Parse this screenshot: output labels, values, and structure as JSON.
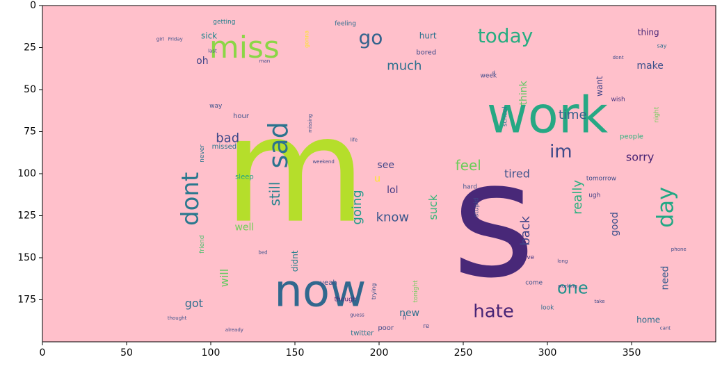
{
  "chart_data": {
    "type": "wordcloud",
    "background_color": "#ffc0cb",
    "xlim": [
      0,
      400
    ],
    "ylim": [
      200,
      0
    ],
    "x_ticks": [
      0,
      50,
      100,
      150,
      200,
      250,
      300,
      350
    ],
    "y_ticks": [
      0,
      25,
      50,
      75,
      100,
      125,
      150,
      175
    ],
    "words": [
      {
        "text": "m",
        "x": 150,
        "y": 98,
        "size": 210,
        "color": "#b5de2b",
        "rot": 0
      },
      {
        "text": "s",
        "x": 268,
        "y": 128,
        "size": 230,
        "color": "#482878",
        "rot": 0
      },
      {
        "text": "work",
        "x": 300,
        "y": 65,
        "size": 72,
        "color": "#26a884",
        "rot": 0
      },
      {
        "text": "now",
        "x": 165,
        "y": 170,
        "size": 64,
        "color": "#31688e",
        "rot": 0
      },
      {
        "text": "miss",
        "x": 120,
        "y": 25,
        "size": 44,
        "color": "#8bd646",
        "rot": 0
      },
      {
        "text": "sad",
        "x": 140,
        "y": 83,
        "size": 38,
        "color": "#2c738e",
        "rot": -90
      },
      {
        "text": "dont",
        "x": 88,
        "y": 115,
        "size": 34,
        "color": "#2a788e",
        "rot": -90
      },
      {
        "text": "today",
        "x": 275,
        "y": 18,
        "size": 28,
        "color": "#27ad81",
        "rot": 0
      },
      {
        "text": "go",
        "x": 195,
        "y": 19,
        "size": 28,
        "color": "#33638d",
        "rot": 0
      },
      {
        "text": "day",
        "x": 370,
        "y": 120,
        "size": 32,
        "color": "#22a884",
        "rot": -90
      },
      {
        "text": "hate",
        "x": 268,
        "y": 182,
        "size": 26,
        "color": "#482576",
        "rot": 0
      },
      {
        "text": "one",
        "x": 315,
        "y": 168,
        "size": 24,
        "color": "#21918c",
        "rot": 0
      },
      {
        "text": "im",
        "x": 308,
        "y": 87,
        "size": 26,
        "color": "#3e4a89",
        "rot": 0
      },
      {
        "text": "sorry",
        "x": 355,
        "y": 90,
        "size": 16,
        "color": "#482374",
        "rot": 0
      },
      {
        "text": "time",
        "x": 315,
        "y": 65,
        "size": 18,
        "color": "#35608d",
        "rot": 0
      },
      {
        "text": "much",
        "x": 215,
        "y": 36,
        "size": 18,
        "color": "#2d708e",
        "rot": 0
      },
      {
        "text": "make",
        "x": 361,
        "y": 36,
        "size": 14,
        "color": "#3b518b",
        "rot": 0
      },
      {
        "text": "thing",
        "x": 360,
        "y": 16,
        "size": 12,
        "color": "#482878",
        "rot": 0
      },
      {
        "text": "want",
        "x": 331,
        "y": 48,
        "size": 12,
        "color": "#414487",
        "rot": -90
      },
      {
        "text": "think",
        "x": 286,
        "y": 52,
        "size": 14,
        "color": "#5ec962",
        "rot": -90
      },
      {
        "text": "feel",
        "x": 253,
        "y": 95,
        "size": 20,
        "color": "#6ccd5a",
        "rot": 0
      },
      {
        "text": "tired",
        "x": 282,
        "y": 100,
        "size": 16,
        "color": "#3b528b",
        "rot": 0
      },
      {
        "text": "bad",
        "x": 110,
        "y": 79,
        "size": 18,
        "color": "#3e4989",
        "rot": 0
      },
      {
        "text": "still",
        "x": 138,
        "y": 112,
        "size": 20,
        "color": "#26828e",
        "rot": -90
      },
      {
        "text": "going",
        "x": 187,
        "y": 120,
        "size": 18,
        "color": "#1f9a8a",
        "rot": -90
      },
      {
        "text": "know",
        "x": 208,
        "y": 126,
        "size": 18,
        "color": "#39568c",
        "rot": 0
      },
      {
        "text": "suck",
        "x": 232,
        "y": 120,
        "size": 16,
        "color": "#35b779",
        "rot": -90
      },
      {
        "text": "back",
        "x": 287,
        "y": 134,
        "size": 18,
        "color": "#404588",
        "rot": -90
      },
      {
        "text": "really",
        "x": 318,
        "y": 114,
        "size": 18,
        "color": "#2ab07f",
        "rot": -90
      },
      {
        "text": "good",
        "x": 340,
        "y": 130,
        "size": 14,
        "color": "#3c508b",
        "rot": -90
      },
      {
        "text": "need",
        "x": 370,
        "y": 162,
        "size": 14,
        "color": "#375b8d",
        "rot": -90
      },
      {
        "text": "got",
        "x": 90,
        "y": 177,
        "size": 16,
        "color": "#2e6e8e",
        "rot": 0
      },
      {
        "text": "will",
        "x": 108,
        "y": 162,
        "size": 16,
        "color": "#63cb5f",
        "rot": -90
      },
      {
        "text": "well",
        "x": 120,
        "y": 132,
        "size": 14,
        "color": "#70cf57",
        "rot": 0
      },
      {
        "text": "new",
        "x": 218,
        "y": 183,
        "size": 14,
        "color": "#2e6f8e",
        "rot": 0
      },
      {
        "text": "lol",
        "x": 208,
        "y": 110,
        "size": 14,
        "color": "#443a83",
        "rot": 0
      },
      {
        "text": "see",
        "x": 204,
        "y": 95,
        "size": 14,
        "color": "#404688",
        "rot": 0
      },
      {
        "text": "oh",
        "x": 95,
        "y": 33,
        "size": 14,
        "color": "#404588",
        "rot": 0
      },
      {
        "text": "sick",
        "x": 99,
        "y": 18,
        "size": 12,
        "color": "#24868e",
        "rot": 0
      },
      {
        "text": "hurt",
        "x": 229,
        "y": 18,
        "size": 12,
        "color": "#2c728e",
        "rot": 0
      },
      {
        "text": "bored",
        "x": 228,
        "y": 28,
        "size": 10,
        "color": "#3e4989",
        "rot": 0
      },
      {
        "text": "u",
        "x": 199,
        "y": 103,
        "size": 14,
        "color": "#fde725",
        "rot": 0
      },
      {
        "text": "home",
        "x": 360,
        "y": 187,
        "size": 12,
        "color": "#2e6f8e",
        "rot": 0
      },
      {
        "text": "people",
        "x": 350,
        "y": 78,
        "size": 10,
        "color": "#2db27d",
        "rot": 0
      },
      {
        "text": "missed",
        "x": 108,
        "y": 84,
        "size": 10,
        "color": "#2a788e",
        "rot": 0
      },
      {
        "text": "sleep",
        "x": 120,
        "y": 102,
        "size": 10,
        "color": "#20a486",
        "rot": 0
      },
      {
        "text": "hour",
        "x": 118,
        "y": 66,
        "size": 10,
        "color": "#3b518b",
        "rot": 0
      },
      {
        "text": "way",
        "x": 103,
        "y": 60,
        "size": 9,
        "color": "#3b528b",
        "rot": 0
      },
      {
        "text": "getting",
        "x": 108,
        "y": 10,
        "size": 9,
        "color": "#27808e",
        "rot": 0
      },
      {
        "text": "feeling",
        "x": 180,
        "y": 11,
        "size": 9,
        "color": "#2e6d8e",
        "rot": 0
      },
      {
        "text": "week",
        "x": 265,
        "y": 42,
        "size": 9,
        "color": "#3e4a89",
        "rot": 0
      },
      {
        "text": "wish",
        "x": 342,
        "y": 56,
        "size": 9,
        "color": "#46337f",
        "rot": 0
      },
      {
        "text": "night",
        "x": 365,
        "y": 65,
        "size": 9,
        "color": "#6ece58",
        "rot": -90
      },
      {
        "text": "school",
        "x": 275,
        "y": 66,
        "size": 9,
        "color": "#2a788e",
        "rot": -90
      },
      {
        "text": "tomorrow",
        "x": 332,
        "y": 103,
        "size": 9,
        "color": "#3e4c8a",
        "rot": 0
      },
      {
        "text": "ugh",
        "x": 328,
        "y": 113,
        "size": 9,
        "color": "#423f85",
        "rot": 0
      },
      {
        "text": "hard",
        "x": 254,
        "y": 108,
        "size": 9,
        "color": "#3b528b",
        "rot": 0
      },
      {
        "text": "stupid",
        "x": 258,
        "y": 120,
        "size": 9,
        "color": "#3e4a89",
        "rot": -90
      },
      {
        "text": "friend",
        "x": 95,
        "y": 142,
        "size": 9,
        "color": "#4ac16d",
        "rot": -90
      },
      {
        "text": "never",
        "x": 95,
        "y": 88,
        "size": 9,
        "color": "#2a778e",
        "rot": -90
      },
      {
        "text": "didnt",
        "x": 150,
        "y": 152,
        "size": 12,
        "color": "#27808e",
        "rot": -90
      },
      {
        "text": "yeah",
        "x": 170,
        "y": 165,
        "size": 10,
        "color": "#3b528b",
        "rot": 0
      },
      {
        "text": "though",
        "x": 180,
        "y": 175,
        "size": 9,
        "color": "#482878",
        "rot": 0
      },
      {
        "text": "tonight",
        "x": 222,
        "y": 170,
        "size": 9,
        "color": "#6ece58",
        "rot": -90
      },
      {
        "text": "ve",
        "x": 290,
        "y": 150,
        "size": 9,
        "color": "#443983",
        "rot": 0
      },
      {
        "text": "come",
        "x": 292,
        "y": 165,
        "size": 9,
        "color": "#3b528b",
        "rot": 0
      },
      {
        "text": "look",
        "x": 300,
        "y": 180,
        "size": 9,
        "color": "#2e6e8e",
        "rot": 0
      },
      {
        "text": "twitter",
        "x": 190,
        "y": 195,
        "size": 10,
        "color": "#2a788e",
        "rot": 0
      },
      {
        "text": "poor",
        "x": 204,
        "y": 192,
        "size": 10,
        "color": "#3e4a89",
        "rot": 0
      },
      {
        "text": "ll",
        "x": 215,
        "y": 186,
        "size": 9,
        "color": "#3b528b",
        "rot": 0
      },
      {
        "text": "re",
        "x": 228,
        "y": 191,
        "size": 9,
        "color": "#3e4a89",
        "rot": 0
      },
      {
        "text": "trying",
        "x": 197,
        "y": 170,
        "size": 8,
        "color": "#3b528b",
        "rot": -90
      },
      {
        "text": "say",
        "x": 368,
        "y": 24,
        "size": 8,
        "color": "#2d708e",
        "rot": 0
      },
      {
        "text": "gonna",
        "x": 157,
        "y": 20,
        "size": 8,
        "color": "#fde725",
        "rot": -90
      },
      {
        "text": "thought",
        "x": 80,
        "y": 186,
        "size": 7,
        "color": "#3b528b",
        "rot": 0
      },
      {
        "text": "already",
        "x": 114,
        "y": 193,
        "size": 7,
        "color": "#3e4a89",
        "rot": 0
      },
      {
        "text": "working",
        "x": 312,
        "y": 167,
        "size": 7,
        "color": "#3b528b",
        "rot": 0
      },
      {
        "text": "take",
        "x": 331,
        "y": 176,
        "size": 7,
        "color": "#3e4a89",
        "rot": 0
      },
      {
        "text": "cant",
        "x": 370,
        "y": 192,
        "size": 7,
        "color": "#3b528b",
        "rot": 0
      },
      {
        "text": "long",
        "x": 309,
        "y": 152,
        "size": 7,
        "color": "#3e4a89",
        "rot": 0
      },
      {
        "text": "bed",
        "x": 131,
        "y": 147,
        "size": 7,
        "color": "#3b528b",
        "rot": 0
      },
      {
        "text": "weekend",
        "x": 167,
        "y": 93,
        "size": 7,
        "color": "#3e4a89",
        "rot": 0
      },
      {
        "text": "life",
        "x": 185,
        "y": 80,
        "size": 7,
        "color": "#3b528b",
        "rot": 0
      },
      {
        "text": "phone",
        "x": 378,
        "y": 145,
        "size": 7,
        "color": "#3e4a89",
        "rot": 0
      },
      {
        "text": "dont",
        "x": 342,
        "y": 31,
        "size": 7,
        "color": "#3e4a89",
        "rot": 0
      },
      {
        "text": "last",
        "x": 101,
        "y": 27,
        "size": 7,
        "color": "#3b528b",
        "rot": 0
      },
      {
        "text": "man",
        "x": 132,
        "y": 33,
        "size": 7,
        "color": "#3e4a89",
        "rot": 0
      },
      {
        "text": "d",
        "x": 268,
        "y": 40,
        "size": 7,
        "color": "#3b528b",
        "rot": 0
      },
      {
        "text": "girl",
        "x": 70,
        "y": 20,
        "size": 7,
        "color": "#3e4a89",
        "rot": 0
      },
      {
        "text": "Friday",
        "x": 79,
        "y": 20,
        "size": 7,
        "color": "#3b528b",
        "rot": 0
      },
      {
        "text": "guess",
        "x": 187,
        "y": 184,
        "size": 7,
        "color": "#3e4a89",
        "rot": 0
      },
      {
        "text": "missing",
        "x": 159,
        "y": 70,
        "size": 7,
        "color": "#3b528b",
        "rot": -90
      }
    ]
  }
}
